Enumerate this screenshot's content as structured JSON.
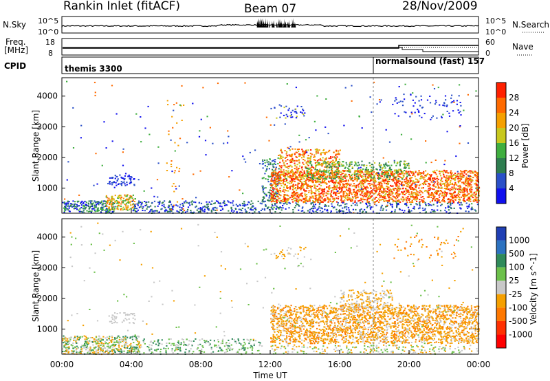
{
  "header": {
    "station": "Rankin Inlet (fitACF)",
    "beam": "Beam 07",
    "date": "28/Nov/2009"
  },
  "noise_panel": {
    "left_label": "N.Sky",
    "right_label": "N.Search",
    "yticks_left": [
      "10^5",
      "10^0"
    ],
    "yticks_right": [
      "10^5",
      "10^0"
    ]
  },
  "freq_panel": {
    "left_label_1": "Freq.",
    "left_label_2": "[MHz]",
    "right_label": "Nave",
    "yticks_left": [
      "18",
      "8"
    ],
    "yticks_right": [
      "60",
      "0"
    ]
  },
  "cpid_panel": {
    "label": "CPID",
    "segments": [
      {
        "name": "themis 3300",
        "start_hour": 0,
        "end_hour": 18
      },
      {
        "name": "normalsound (fast)  157",
        "start_hour": 18,
        "end_hour": 24
      }
    ]
  },
  "time_axis": {
    "label": "Time UT",
    "ticks": [
      "00:00",
      "04:00",
      "08:00",
      "12:00",
      "16:00",
      "20:00",
      "00:00"
    ],
    "tick_hours": [
      0,
      4,
      8,
      12,
      16,
      20,
      24
    ]
  },
  "colors": {
    "power_scale": [
      "#1010ee",
      "#2a50c8",
      "#2e7d4f",
      "#3fae3f",
      "#c8c81e",
      "#f5a000",
      "#ff6a00",
      "#ff2000"
    ],
    "velocity_scale": [
      "#1f3fb4",
      "#2c72c0",
      "#2f8a5a",
      "#6cc04a",
      "#c8c8c8",
      "#f5a000",
      "#ff7800",
      "#ff3000",
      "#ff0000"
    ]
  },
  "chart_data": [
    {
      "type": "heatmap",
      "panel": "power",
      "xlabel": "",
      "ylabel": "Slant Range [km]",
      "xlim_hours": [
        0,
        24
      ],
      "ylim": [
        180,
        4600
      ],
      "yticks": [
        "1000",
        "2000",
        "3000",
        "4000"
      ],
      "ytick_values": [
        1000,
        2000,
        3000,
        4000
      ],
      "colorbar": {
        "label": "Power [dB]",
        "ticks": [
          "4",
          "8",
          "12",
          "16",
          "20",
          "24",
          "28"
        ],
        "tick_values": [
          4,
          8,
          12,
          16,
          20,
          24,
          28
        ],
        "range": [
          0,
          32
        ]
      }
    },
    {
      "type": "heatmap",
      "panel": "velocity",
      "xlabel": "Time UT",
      "ylabel": "Slant Range [km]",
      "xlim_hours": [
        0,
        24
      ],
      "ylim": [
        180,
        4600
      ],
      "yticks": [
        "1000",
        "2000",
        "3000",
        "4000"
      ],
      "ytick_values": [
        1000,
        2000,
        3000,
        4000
      ],
      "colorbar": {
        "label": "Velocity  [m s^-1]",
        "ticks": [
          "1000",
          "500",
          "100",
          "25",
          "-25",
          "-100",
          "-500",
          "-1000"
        ],
        "tick_values": [
          1000,
          500,
          100,
          25,
          -25,
          -100,
          -500,
          -1000
        ]
      }
    }
  ]
}
